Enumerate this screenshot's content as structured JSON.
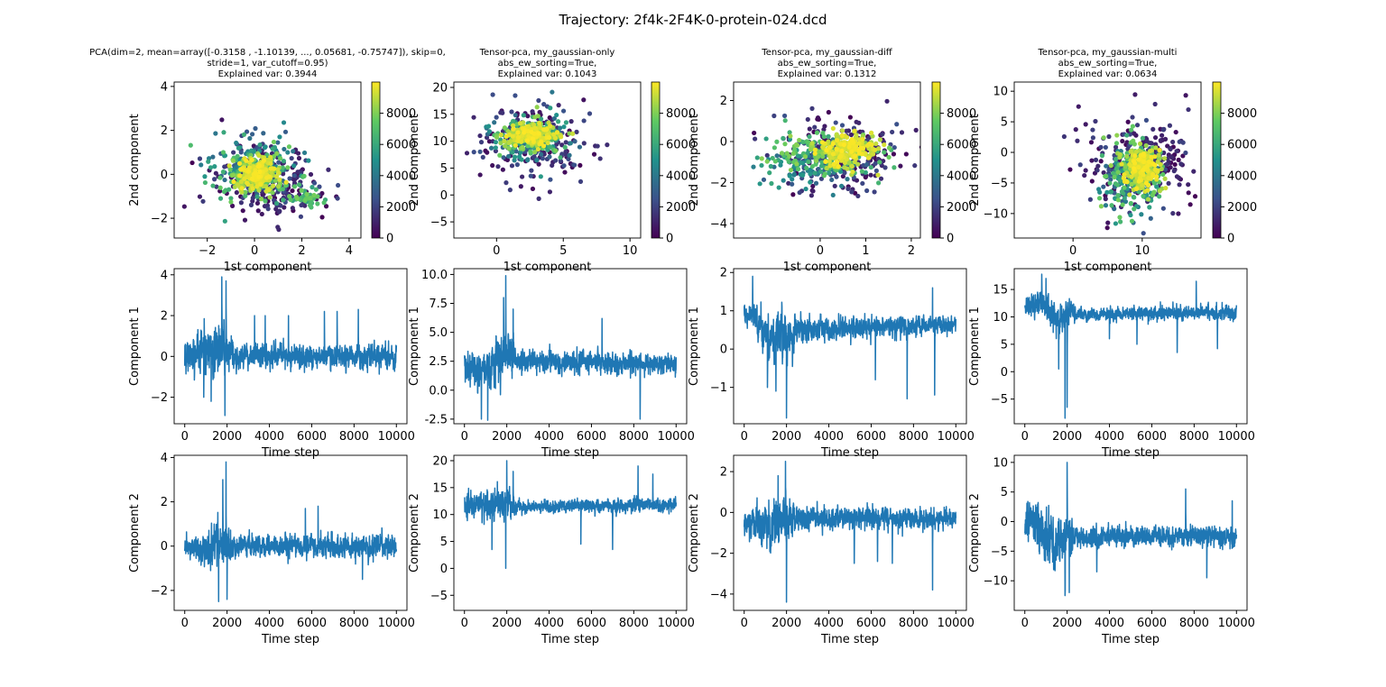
{
  "figure": {
    "suptitle": "Trajectory: 2f4k-2F4K-0-protein-024.dcd"
  },
  "colormap": {
    "name": "viridis",
    "stops": [
      "#440154",
      "#3b528b",
      "#21918c",
      "#5ec962",
      "#fde725"
    ]
  },
  "chart_data": [
    {
      "type": "scatter",
      "panel": "scatter-1",
      "title_lines": [
        "PCA(dim=2, mean=array([-0.3158 , -1.10139, ...,  0.05681, -0.75747]), skip=0,",
        "stride=1, var_cutoff=0.95)",
        "Explained var: 0.3944"
      ],
      "xlabel": "1st component",
      "ylabel": "2nd component",
      "xlim": [
        -3.4,
        4.5
      ],
      "ylim": [
        -2.9,
        4.2
      ],
      "xticks": [
        -2,
        0,
        2,
        4
      ],
      "yticks": [
        -2,
        0,
        2,
        4
      ],
      "colorbar": {
        "min": 0,
        "max": 10000,
        "ticks": [
          0,
          2000,
          4000,
          6000,
          8000
        ]
      },
      "clusters": [
        {
          "cx": 0.4,
          "cy": -0.2,
          "sx": 1.1,
          "sy": 0.9,
          "t0": 0,
          "t1": 2000,
          "n": 160
        },
        {
          "cx": 1.6,
          "cy": -1.0,
          "sx": 0.8,
          "sy": 0.5,
          "t0": 0,
          "t1": 2500,
          "n": 60
        },
        {
          "cx": 0.0,
          "cy": 0.4,
          "sx": 0.9,
          "sy": 0.7,
          "t0": 2000,
          "t1": 6000,
          "n": 140
        },
        {
          "cx": 2.2,
          "cy": -1.0,
          "sx": 0.4,
          "sy": 0.3,
          "t0": 5500,
          "t1": 8000,
          "n": 40
        },
        {
          "cx": 0.0,
          "cy": 0.0,
          "sx": 0.7,
          "sy": 0.6,
          "t0": 6000,
          "t1": 8500,
          "n": 140
        },
        {
          "cx": 0.1,
          "cy": 0.0,
          "sx": 0.4,
          "sy": 0.35,
          "t0": 8500,
          "t1": 10000,
          "n": 220
        }
      ]
    },
    {
      "type": "scatter",
      "panel": "scatter-2",
      "title_lines": [
        "Tensor-pca, my_gaussian-only",
        "abs_ew_sorting=True,",
        "Explained var: 0.1043"
      ],
      "xlabel": "1st component",
      "ylabel": "2nd component",
      "xlim": [
        -3.2,
        10.8
      ],
      "ylim": [
        -8.0,
        21.0
      ],
      "xticks": [
        0,
        5,
        10
      ],
      "yticks": [
        -5,
        0,
        5,
        10,
        15,
        20
      ],
      "colorbar": {
        "min": 0,
        "max": 10000,
        "ticks": [
          0,
          2000,
          4000,
          6000,
          8000
        ]
      },
      "clusters": [
        {
          "cx": 3.0,
          "cy": 10.0,
          "sx": 2.3,
          "sy": 4.0,
          "t0": 0,
          "t1": 2500,
          "n": 180
        },
        {
          "cx": 2.5,
          "cy": 10.5,
          "sx": 1.4,
          "sy": 2.2,
          "t0": 2500,
          "t1": 6000,
          "n": 140
        },
        {
          "cx": 2.5,
          "cy": 11.0,
          "sx": 1.1,
          "sy": 1.4,
          "t0": 6000,
          "t1": 8500,
          "n": 150
        },
        {
          "cx": 2.7,
          "cy": 11.2,
          "sx": 0.8,
          "sy": 0.9,
          "t0": 8500,
          "t1": 10000,
          "n": 220
        }
      ]
    },
    {
      "type": "scatter",
      "panel": "scatter-3",
      "title_lines": [
        "Tensor-pca, my_gaussian-diff",
        "abs_ew_sorting=True,",
        "Explained var: 0.1312"
      ],
      "xlabel": "1st component",
      "ylabel": "2nd component",
      "xlim": [
        -1.9,
        2.2
      ],
      "ylim": [
        -4.7,
        2.9
      ],
      "xticks": [
        0,
        1,
        2
      ],
      "yticks": [
        -4,
        -2,
        0,
        2
      ],
      "colorbar": {
        "min": 0,
        "max": 10000,
        "ticks": [
          0,
          2000,
          4000,
          6000,
          8000
        ]
      },
      "clusters": [
        {
          "cx": 0.4,
          "cy": -0.6,
          "sx": 0.7,
          "sy": 1.0,
          "t0": 0,
          "t1": 2500,
          "n": 180
        },
        {
          "cx": 0.9,
          "cy": -0.3,
          "sx": 0.3,
          "sy": 0.5,
          "t0": 0,
          "t1": 1500,
          "n": 50
        },
        {
          "cx": -0.3,
          "cy": -1.0,
          "sx": 0.5,
          "sy": 0.6,
          "t0": 2500,
          "t1": 6000,
          "n": 120
        },
        {
          "cx": 0.1,
          "cy": -0.6,
          "sx": 0.6,
          "sy": 0.5,
          "t0": 6000,
          "t1": 8500,
          "n": 150
        },
        {
          "cx": 0.6,
          "cy": -0.4,
          "sx": 0.28,
          "sy": 0.4,
          "t0": 8500,
          "t1": 10000,
          "n": 220
        }
      ]
    },
    {
      "type": "scatter",
      "panel": "scatter-4",
      "title_lines": [
        "Tensor-pca, my_gaussian-multi",
        "abs_ew_sorting=True,",
        "Explained var: 0.0634"
      ],
      "xlabel": "1st component",
      "ylabel": "2nd component",
      "xlim": [
        -8.5,
        18.5
      ],
      "ylim": [
        -14.0,
        11.5
      ],
      "xticks": [
        0,
        10
      ],
      "yticks": [
        -10,
        -5,
        0,
        5,
        10
      ],
      "colorbar": {
        "min": 0,
        "max": 10000,
        "ticks": [
          0,
          2000,
          4000,
          6000,
          8000
        ]
      },
      "clusters": [
        {
          "cx": 9.0,
          "cy": -2.0,
          "sx": 4.0,
          "sy": 4.0,
          "t0": 0,
          "t1": 2500,
          "n": 180
        },
        {
          "cx": 13.0,
          "cy": -1.0,
          "sx": 1.8,
          "sy": 2.5,
          "t0": 0,
          "t1": 1500,
          "n": 50
        },
        {
          "cx": 8.0,
          "cy": -5.0,
          "sx": 1.8,
          "sy": 2.5,
          "t0": 2500,
          "t1": 6000,
          "n": 130
        },
        {
          "cx": 9.0,
          "cy": -3.0,
          "sx": 2.0,
          "sy": 2.5,
          "t0": 6000,
          "t1": 8500,
          "n": 150
        },
        {
          "cx": 10.0,
          "cy": -2.5,
          "sx": 1.3,
          "sy": 1.6,
          "t0": 8500,
          "t1": 10000,
          "n": 220
        }
      ]
    },
    {
      "type": "line",
      "panel": "comp1-1",
      "xlabel": "Time step",
      "ylabel": "Component 1",
      "xlim": [
        -500,
        10500
      ],
      "ylim": [
        -3.3,
        4.3
      ],
      "xticks": [
        0,
        2000,
        4000,
        6000,
        8000,
        10000
      ],
      "yticks": [
        -2,
        0,
        2,
        4
      ],
      "segments": [
        [
          0,
          0.0,
          1.0
        ],
        [
          300,
          0.0,
          0.8
        ],
        [
          600,
          0.2,
          1.2
        ],
        [
          1000,
          0.4,
          1.3
        ],
        [
          1400,
          0.0,
          1.6
        ],
        [
          1600,
          0.5,
          1.6
        ],
        [
          1800,
          0.5,
          1.9
        ],
        [
          2000,
          0.3,
          1.3
        ],
        [
          2500,
          0.0,
          0.7
        ],
        [
          10000,
          0.0,
          0.75
        ]
      ],
      "spikes": [
        [
          1750,
          3.9
        ],
        [
          1950,
          3.7
        ],
        [
          1900,
          -2.9
        ],
        [
          1250,
          -2.2
        ],
        [
          900,
          -2.0
        ],
        [
          3300,
          2.0
        ],
        [
          3800,
          2.0
        ],
        [
          4900,
          2.0
        ],
        [
          6600,
          2.2
        ],
        [
          7200,
          2.2
        ],
        [
          8200,
          2.3
        ]
      ]
    },
    {
      "type": "line",
      "panel": "comp1-2",
      "xlabel": "Time step",
      "ylabel": "Component 1",
      "xlim": [
        -500,
        10500
      ],
      "ylim": [
        -2.9,
        10.5
      ],
      "xticks": [
        0,
        2000,
        4000,
        6000,
        8000,
        10000
      ],
      "yticks": [
        -2.5,
        0.0,
        2.5,
        5.0,
        7.5,
        10.0
      ],
      "segments": [
        [
          0,
          2.0,
          1.5
        ],
        [
          600,
          2.0,
          2.0
        ],
        [
          1500,
          2.2,
          2.4
        ],
        [
          2000,
          3.5,
          2.6
        ],
        [
          2500,
          2.5,
          1.2
        ],
        [
          10000,
          2.3,
          1.1
        ]
      ],
      "spikes": [
        [
          1950,
          9.9
        ],
        [
          1850,
          8.0
        ],
        [
          800,
          -2.5
        ],
        [
          1100,
          -2.6
        ],
        [
          8300,
          -2.5
        ],
        [
          6500,
          6.2
        ],
        [
          2300,
          7.0
        ]
      ]
    },
    {
      "type": "line",
      "panel": "comp1-3",
      "xlabel": "Time step",
      "ylabel": "Component 1",
      "xlim": [
        -500,
        10500
      ],
      "ylim": [
        -1.95,
        2.1
      ],
      "xticks": [
        0,
        2000,
        4000,
        6000,
        8000,
        10000
      ],
      "yticks": [
        -1,
        0,
        1,
        2
      ],
      "segments": [
        [
          0,
          0.85,
          0.35
        ],
        [
          400,
          0.9,
          0.45
        ],
        [
          1000,
          0.4,
          0.7
        ],
        [
          2000,
          0.2,
          0.85
        ],
        [
          2500,
          0.5,
          0.4
        ],
        [
          10000,
          0.65,
          0.3
        ]
      ],
      "spikes": [
        [
          400,
          1.9
        ],
        [
          2000,
          -1.8
        ],
        [
          1100,
          -1.0
        ],
        [
          1500,
          -1.1
        ],
        [
          7700,
          -1.3
        ],
        [
          9000,
          -1.2
        ],
        [
          6200,
          -0.8
        ],
        [
          8900,
          1.6
        ]
      ]
    },
    {
      "type": "line",
      "panel": "comp1-4",
      "xlabel": "Time step",
      "ylabel": "Component 1",
      "xlim": [
        -500,
        10500
      ],
      "ylim": [
        -9.5,
        18.8
      ],
      "xticks": [
        0,
        2000,
        4000,
        6000,
        8000,
        10000
      ],
      "yticks": [
        -5,
        0,
        5,
        10,
        15
      ],
      "segments": [
        [
          0,
          11.5,
          2.5
        ],
        [
          800,
          13.0,
          3.0
        ],
        [
          1500,
          9.0,
          4.0
        ],
        [
          2000,
          10.5,
          3.0
        ],
        [
          2500,
          10.5,
          1.6
        ],
        [
          10000,
          10.8,
          1.6
        ]
      ],
      "spikes": [
        [
          1900,
          -8.5
        ],
        [
          2000,
          -6.5
        ],
        [
          1600,
          0.5
        ],
        [
          800,
          17.8
        ],
        [
          1000,
          17.0
        ],
        [
          8100,
          16.5
        ],
        [
          4000,
          6.0
        ],
        [
          5300,
          5.0
        ],
        [
          7200,
          3.5
        ],
        [
          9100,
          4.2
        ]
      ]
    },
    {
      "type": "line",
      "panel": "comp2-1",
      "xlabel": "Time step",
      "ylabel": "Component 2",
      "xlim": [
        -500,
        10500
      ],
      "ylim": [
        -2.9,
        4.1
      ],
      "xticks": [
        0,
        2000,
        4000,
        6000,
        8000,
        10000
      ],
      "yticks": [
        -2,
        0,
        2,
        4
      ],
      "segments": [
        [
          0,
          0.0,
          0.6
        ],
        [
          1200,
          -0.2,
          0.9
        ],
        [
          1500,
          0.2,
          1.4
        ],
        [
          2000,
          -0.1,
          1.0
        ],
        [
          2500,
          0.0,
          0.6
        ],
        [
          10000,
          0.0,
          0.65
        ]
      ],
      "spikes": [
        [
          1950,
          3.8
        ],
        [
          1800,
          3.0
        ],
        [
          1600,
          -2.5
        ],
        [
          2000,
          -2.4
        ],
        [
          8400,
          -1.5
        ],
        [
          6300,
          1.8
        ],
        [
          5700,
          1.7
        ]
      ]
    },
    {
      "type": "line",
      "panel": "comp2-2",
      "xlabel": "Time step",
      "ylabel": "Component 2",
      "xlim": [
        -500,
        10500
      ],
      "ylim": [
        -7.8,
        21.0
      ],
      "xticks": [
        0,
        2000,
        4000,
        6000,
        8000,
        10000
      ],
      "yticks": [
        -5,
        0,
        5,
        10,
        15,
        20
      ],
      "segments": [
        [
          0,
          11.5,
          3.0
        ],
        [
          1000,
          12.0,
          3.5
        ],
        [
          2000,
          12.0,
          4.0
        ],
        [
          2500,
          11.5,
          1.5
        ],
        [
          10000,
          11.8,
          1.6
        ]
      ],
      "spikes": [
        [
          2000,
          -6.5
        ],
        [
          1950,
          0.0
        ],
        [
          2000,
          20.0
        ],
        [
          2300,
          18.0
        ],
        [
          8200,
          19.0
        ],
        [
          5500,
          4.5
        ],
        [
          7000,
          3.5
        ],
        [
          1300,
          3.5
        ],
        [
          8900,
          17.5
        ]
      ]
    },
    {
      "type": "line",
      "panel": "comp2-3",
      "xlabel": "Time step",
      "ylabel": "Component 2",
      "xlim": [
        -500,
        10500
      ],
      "ylim": [
        -4.8,
        2.8
      ],
      "xticks": [
        0,
        2000,
        4000,
        6000,
        8000,
        10000
      ],
      "yticks": [
        -4,
        -2,
        0,
        2
      ],
      "segments": [
        [
          0,
          -0.5,
          1.0
        ],
        [
          1000,
          -0.6,
          1.4
        ],
        [
          2000,
          -0.5,
          1.5
        ],
        [
          2500,
          -0.3,
          0.7
        ],
        [
          10000,
          -0.3,
          0.6
        ]
      ],
      "spikes": [
        [
          2000,
          -4.4
        ],
        [
          1950,
          2.5
        ],
        [
          1600,
          1.8
        ],
        [
          8900,
          -3.8
        ],
        [
          5200,
          -2.5
        ],
        [
          6300,
          -2.4
        ],
        [
          7000,
          -2.5
        ]
      ]
    },
    {
      "type": "line",
      "panel": "comp2-4",
      "xlabel": "Time step",
      "ylabel": "Component 2",
      "xlim": [
        -500,
        10500
      ],
      "ylim": [
        -15.0,
        11.2
      ],
      "xticks": [
        0,
        2000,
        4000,
        6000,
        8000,
        10000
      ],
      "yticks": [
        -10,
        -5,
        0,
        5,
        10
      ],
      "segments": [
        [
          0,
          0.0,
          4.0
        ],
        [
          800,
          -1.0,
          5.0
        ],
        [
          1500,
          -4.0,
          6.0
        ],
        [
          2000,
          -2.0,
          5.0
        ],
        [
          2500,
          -2.5,
          2.2
        ],
        [
          10000,
          -2.5,
          2.0
        ]
      ],
      "spikes": [
        [
          2000,
          10.0
        ],
        [
          1900,
          -12.5
        ],
        [
          2100,
          -12.0
        ],
        [
          7600,
          5.5
        ],
        [
          3400,
          -8.5
        ],
        [
          8600,
          -9.5
        ],
        [
          9800,
          3.5
        ]
      ]
    }
  ]
}
